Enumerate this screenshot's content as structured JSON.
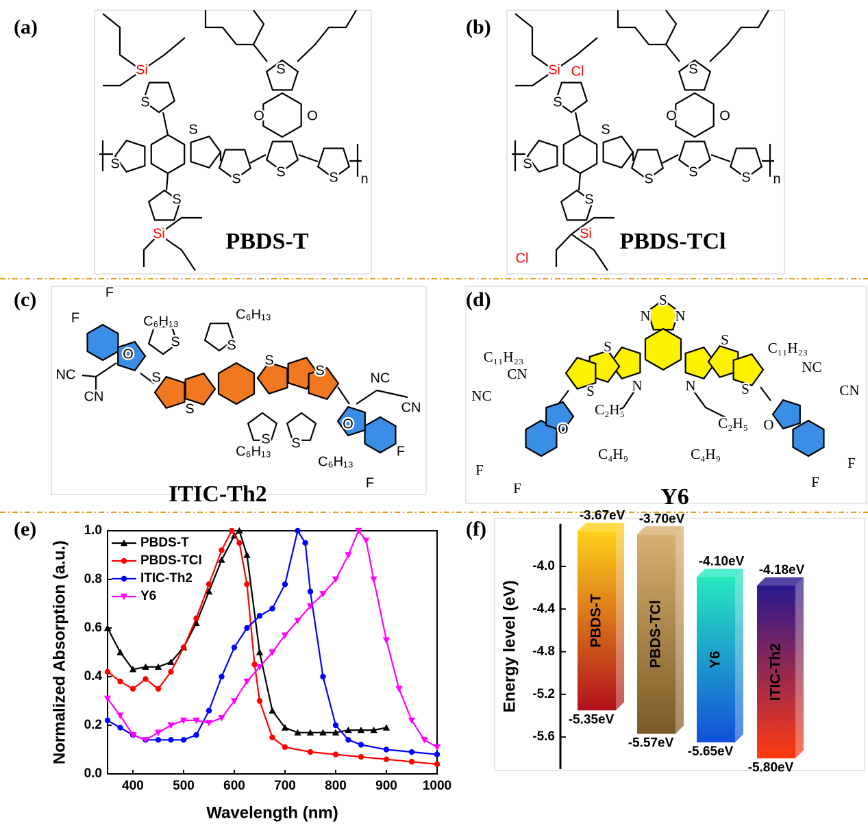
{
  "panels": [
    {
      "label": "(a)",
      "name": "PBDS-T",
      "atoms": [
        "Si",
        "S",
        "S",
        "S",
        "S",
        "S",
        "O",
        "O",
        "S",
        "S",
        "S",
        "Si",
        "n"
      ]
    },
    {
      "label": "(b)",
      "name": "PBDS-TCl",
      "atoms": [
        "Si",
        "Cl",
        "S",
        "S",
        "S",
        "S",
        "S",
        "O",
        "O",
        "S",
        "S",
        "S",
        "Cl",
        "Si",
        "n"
      ]
    },
    {
      "label": "(c)",
      "name": "ITIC-Th2",
      "atoms": [
        "F",
        "F",
        "O",
        "NC",
        "CN",
        "C₆H₁₃",
        "C₆H₁₃",
        "S",
        "S",
        "S",
        "S",
        "S",
        "S",
        "NC",
        "CN",
        "O",
        "C₆H₁₃",
        "C₆H₁₃",
        "F",
        "F",
        "S",
        "S"
      ]
    },
    {
      "label": "(d)",
      "name": "Y6",
      "atoms": [
        "S",
        "N",
        "N",
        "S",
        "S",
        "S",
        "S",
        "N",
        "N",
        "C₁₁H₂₃",
        "CN",
        "NC",
        "O",
        "C₂H₅",
        "C₄H₉",
        "C₂H₅",
        "C₄H₉",
        "C₁₁H₂₃",
        "NC",
        "CN",
        "O",
        "F",
        "F",
        "F",
        "F"
      ]
    },
    {
      "label": "(e)"
    },
    {
      "label": "(f)"
    }
  ],
  "chart_data": [
    {
      "type": "line",
      "xlabel": "Wavelength (nm)",
      "ylabel": "Normalized Absorption (a.u.)",
      "xlim": [
        350,
        1000
      ],
      "ylim": [
        0,
        1.0
      ],
      "xticks": [
        400,
        500,
        600,
        700,
        800,
        900,
        1000
      ],
      "yticks": [
        {
          "value": 0,
          "label": "0.0"
        },
        0.2,
        0.4,
        0.6,
        0.8,
        {
          "value": 1.0,
          "label": "1.0"
        }
      ],
      "series": [
        {
          "name": "PBDS-T",
          "color": "#000000",
          "marker": "triangle-up",
          "x": [
            350,
            375,
            400,
            425,
            450,
            475,
            500,
            525,
            550,
            575,
            600,
            610,
            625,
            650,
            675,
            700,
            725,
            750,
            775,
            800,
            825,
            850,
            875,
            900
          ],
          "values": [
            0.6,
            0.5,
            0.43,
            0.44,
            0.44,
            0.46,
            0.52,
            0.62,
            0.75,
            0.88,
            0.98,
            1.0,
            0.9,
            0.5,
            0.26,
            0.19,
            0.17,
            0.17,
            0.17,
            0.17,
            0.18,
            0.18,
            0.18,
            0.19
          ]
        },
        {
          "name": "PBDS-TCl",
          "color": "#ff0000",
          "marker": "circle",
          "x": [
            350,
            375,
            400,
            425,
            450,
            475,
            500,
            525,
            550,
            575,
            595,
            610,
            625,
            640,
            650,
            675,
            700,
            750,
            800,
            850,
            900,
            950,
            1000
          ],
          "values": [
            0.42,
            0.38,
            0.35,
            0.39,
            0.35,
            0.42,
            0.52,
            0.64,
            0.78,
            0.92,
            1.0,
            0.95,
            0.78,
            0.45,
            0.3,
            0.15,
            0.11,
            0.09,
            0.08,
            0.07,
            0.06,
            0.05,
            0.04
          ]
        },
        {
          "name": "ITIC-Th2",
          "color": "#0000ff",
          "marker": "circle",
          "x": [
            350,
            375,
            400,
            425,
            450,
            475,
            500,
            525,
            550,
            575,
            600,
            625,
            650,
            675,
            700,
            725,
            740,
            750,
            775,
            800,
            825,
            850,
            900,
            950,
            1000
          ],
          "values": [
            0.22,
            0.19,
            0.16,
            0.14,
            0.14,
            0.14,
            0.14,
            0.16,
            0.26,
            0.4,
            0.52,
            0.6,
            0.65,
            0.68,
            0.78,
            1.0,
            0.95,
            0.75,
            0.4,
            0.2,
            0.14,
            0.12,
            0.1,
            0.09,
            0.08
          ]
        },
        {
          "name": "Y6",
          "color": "#ff00ff",
          "marker": "triangle-down",
          "x": [
            350,
            375,
            400,
            425,
            450,
            475,
            500,
            525,
            550,
            575,
            600,
            625,
            650,
            675,
            700,
            725,
            750,
            775,
            800,
            825,
            845,
            860,
            875,
            900,
            925,
            950,
            975,
            1000
          ],
          "values": [
            0.31,
            0.24,
            0.16,
            0.14,
            0.17,
            0.2,
            0.22,
            0.22,
            0.21,
            0.23,
            0.3,
            0.38,
            0.44,
            0.5,
            0.57,
            0.63,
            0.69,
            0.74,
            0.8,
            0.9,
            1.0,
            0.96,
            0.8,
            0.55,
            0.35,
            0.22,
            0.14,
            0.11
          ]
        }
      ]
    },
    {
      "type": "floating_bar",
      "ylabel": "Energy level (eV)",
      "ylim": [
        -5.9,
        -3.6
      ],
      "yticks": [
        {
          "value": -4.0,
          "label": "-4.0"
        },
        -4.4,
        -4.8,
        -5.2,
        -5.6
      ],
      "categories": [
        "PBDS-T",
        "PBDS-TCl",
        "Y6",
        "ITIC-Th2"
      ],
      "colors": [
        [
          "#ffd21a",
          "#b0101a"
        ],
        [
          "#d8b070",
          "#7a5a24"
        ],
        [
          "#28e8c0",
          "#1050d8"
        ],
        [
          "#2a1890",
          "#ff3a10"
        ]
      ],
      "series": [
        {
          "values": [
            -3.67,
            -3.7,
            -4.1,
            -4.18
          ],
          "value_labels": [
            "-3.67eV",
            "-3.70eV",
            "-4.10eV",
            "-4.18eV"
          ]
        },
        {
          "values": [
            -5.35,
            -5.57,
            -5.65,
            -5.8
          ],
          "value_labels": [
            "-5.35eV",
            "-5.57eV",
            "-5.65eV",
            "-5.80eV"
          ]
        }
      ]
    }
  ]
}
